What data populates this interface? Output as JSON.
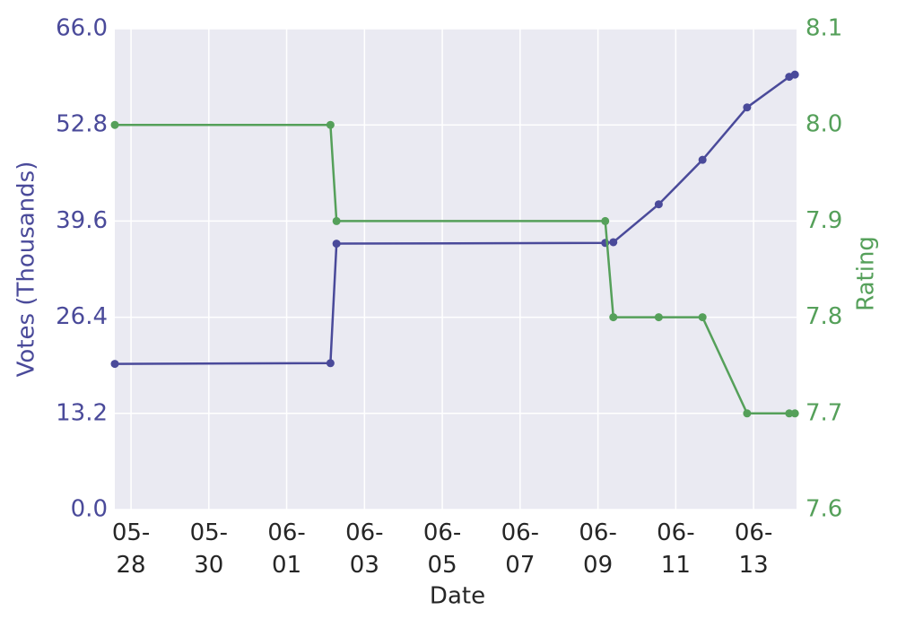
{
  "chart_data": {
    "type": "line",
    "x_label": "Date",
    "y_label": "Votes (Thousands)",
    "y2_label": "Rating",
    "x": [
      "05-27 14:00",
      "06-02 03:00",
      "06-02 06:45",
      "06-09 04:30",
      "06-09 09:30",
      "06-10 13:30",
      "06-11 16:30",
      "06-12 20:00",
      "06-13 22:00",
      "06-14 01:30"
    ],
    "series": [
      {
        "name": "Votes",
        "color": "#4a4a9a",
        "values": [
          20.0,
          20.1,
          36.5,
          36.6,
          36.7,
          41.9,
          48.0,
          55.2,
          59.4,
          59.7
        ]
      },
      {
        "name": "Rating",
        "color": "#55a05a",
        "axis": "y2",
        "values": [
          8.0,
          8.0,
          7.9,
          7.9,
          7.8,
          7.8,
          7.8,
          7.7,
          7.7,
          7.7
        ]
      }
    ],
    "xlim": [
      "05-27 14:00",
      "06-14 02:30"
    ],
    "xticks": [
      "05-28",
      "05-30",
      "06-01",
      "06-03",
      "06-05",
      "06-07",
      "06-09",
      "06-11",
      "06-13"
    ],
    "ylim": [
      0,
      66
    ],
    "yticks": [
      {
        "value": 0,
        "label": "0.0"
      },
      13.2,
      26.4,
      39.6,
      52.8,
      {
        "value": 66,
        "label": "66.0"
      }
    ],
    "y2lim": [
      7.6,
      8.1
    ],
    "y2ticks": [
      7.6,
      7.7,
      7.8,
      7.9,
      {
        "value": 8.0,
        "label": "8.0"
      },
      8.1
    ],
    "grid": true
  }
}
